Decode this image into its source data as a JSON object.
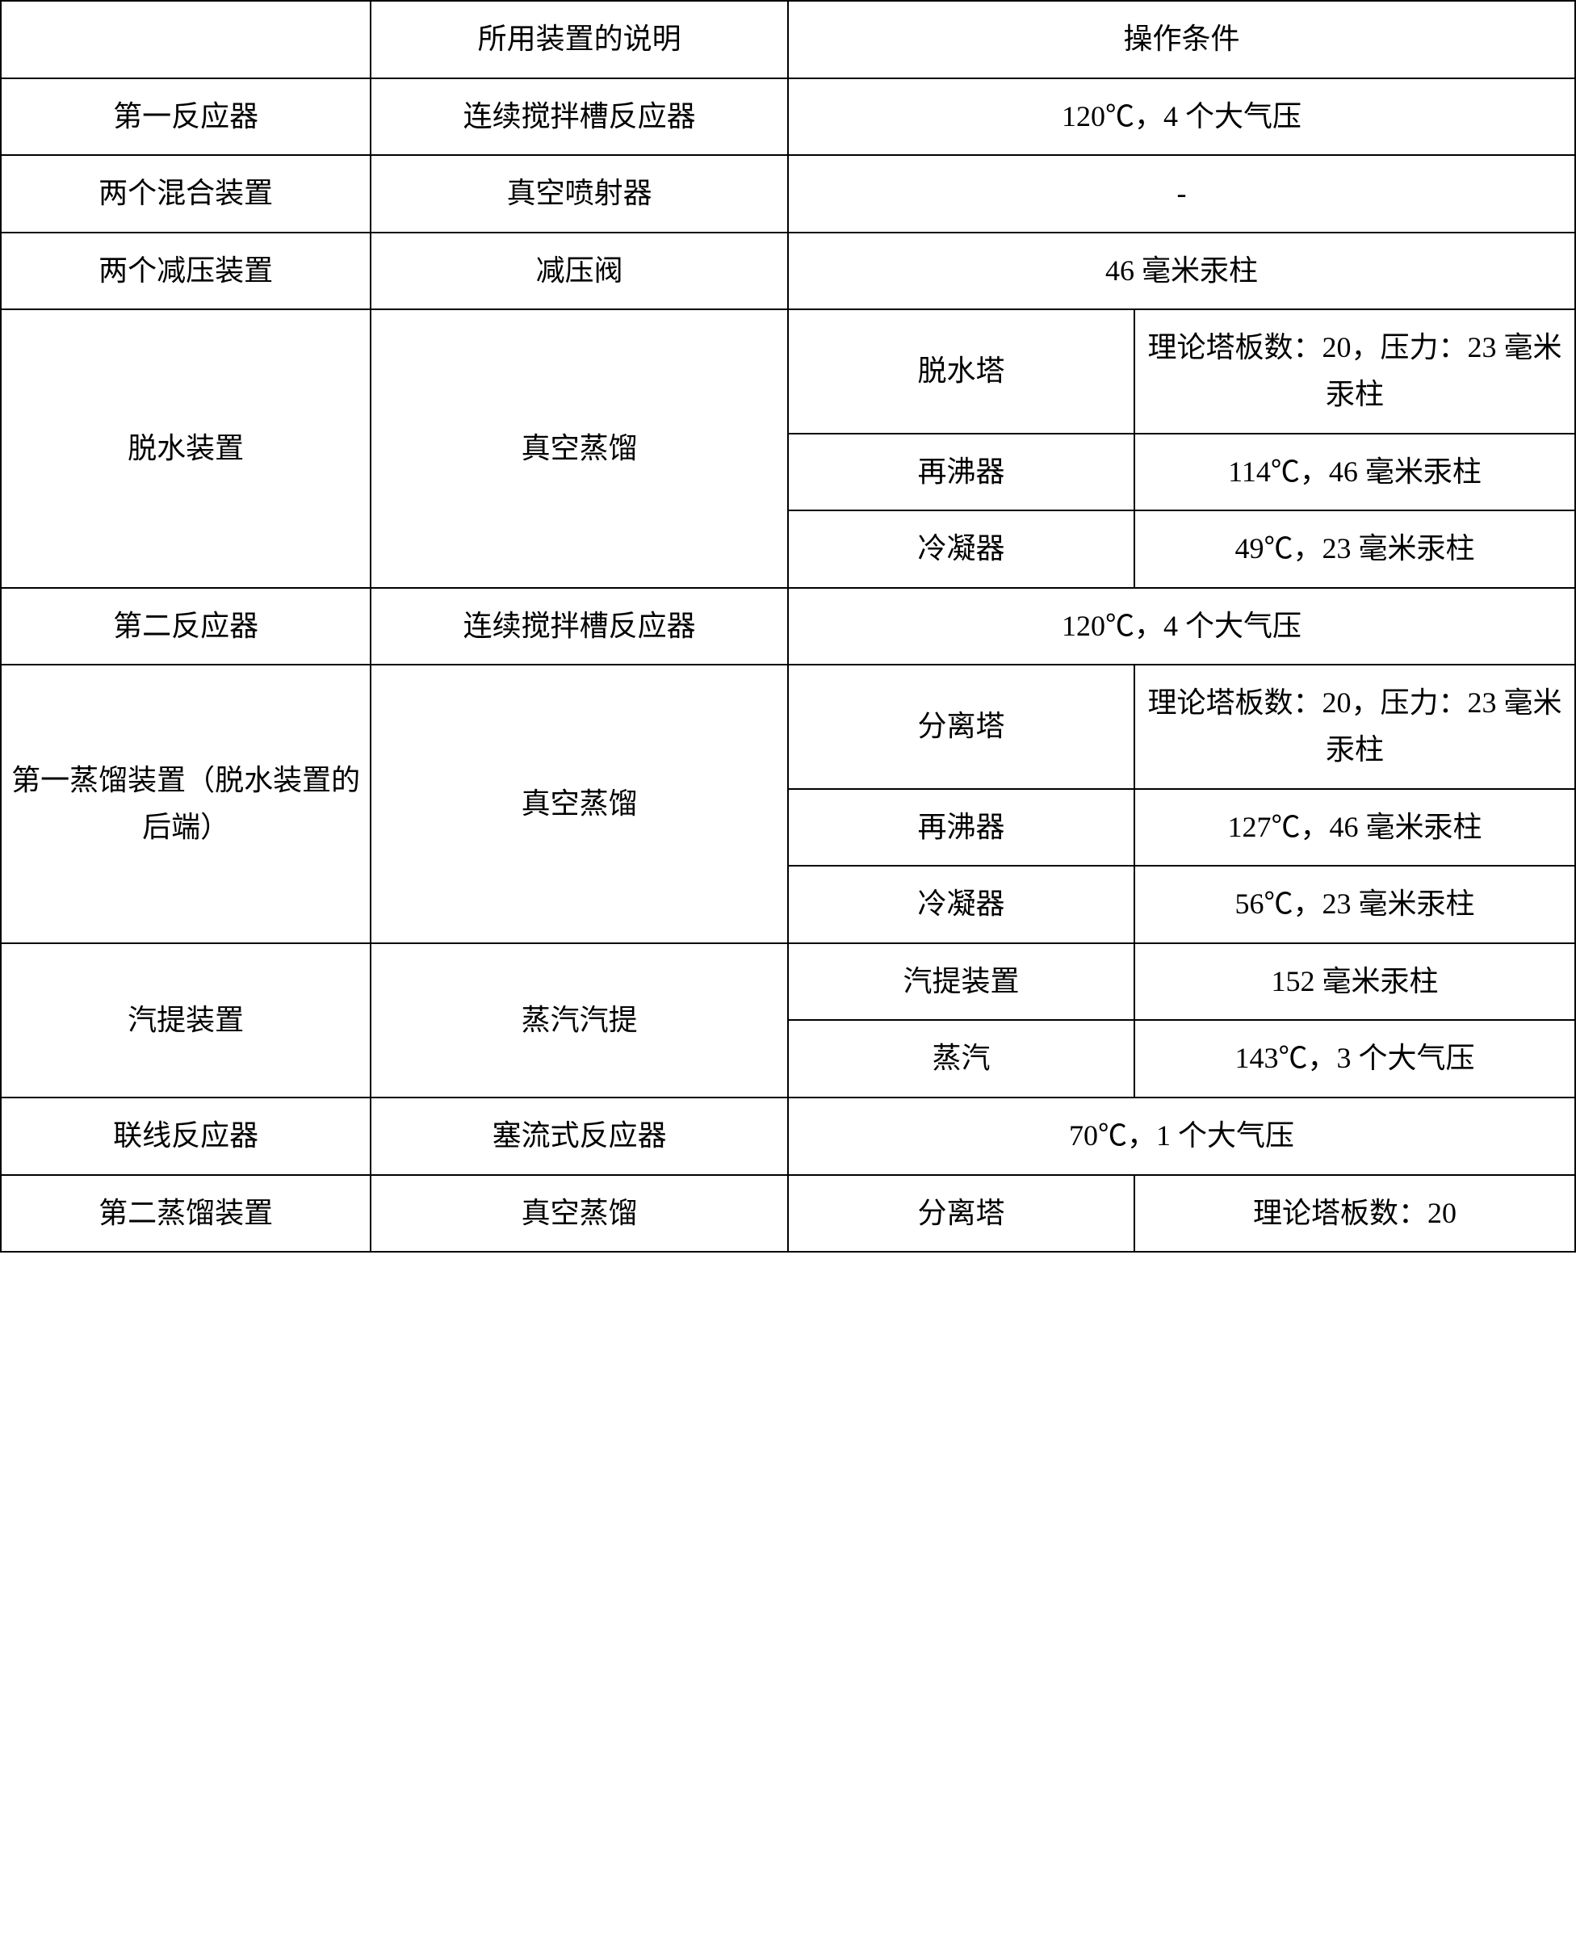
{
  "table": {
    "header": {
      "col1": "",
      "col2": "所用装置的说明",
      "col3_4": "操作条件"
    },
    "rows": {
      "r1": {
        "c1": "第一反应器",
        "c2": "连续搅拌槽反应器",
        "c3_4": "120℃，4 个大气压"
      },
      "r2": {
        "c1": "两个混合装置",
        "c2": "真空喷射器",
        "c3_4": "-"
      },
      "r3": {
        "c1": "两个减压装置",
        "c2": "减压阀",
        "c3_4": "46 毫米汞柱"
      },
      "r4": {
        "c1": "脱水装置",
        "c2": "真空蒸馏",
        "sub1": {
          "c3": "脱水塔",
          "c4": "理论塔板数：20，压力：23 毫米汞柱"
        },
        "sub2": {
          "c3": "再沸器",
          "c4": "114℃，46 毫米汞柱"
        },
        "sub3": {
          "c3": "冷凝器",
          "c4": "49℃，23 毫米汞柱"
        }
      },
      "r5": {
        "c1": "第二反应器",
        "c2": "连续搅拌槽反应器",
        "c3_4": "120℃，4 个大气压"
      },
      "r6": {
        "c1": "第一蒸馏装置（脱水装置的后端）",
        "c2": "真空蒸馏",
        "sub1": {
          "c3": "分离塔",
          "c4": "理论塔板数：20，压力：23 毫米汞柱"
        },
        "sub2": {
          "c3": "再沸器",
          "c4": "127℃，46 毫米汞柱"
        },
        "sub3": {
          "c3": "冷凝器",
          "c4": "56℃，23 毫米汞柱"
        }
      },
      "r7": {
        "c1": "汽提装置",
        "c2": "蒸汽汽提",
        "sub1": {
          "c3": "汽提装置",
          "c4": "152 毫米汞柱"
        },
        "sub2": {
          "c3": "蒸汽",
          "c4": "143℃，3 个大气压"
        }
      },
      "r8": {
        "c1": "联线反应器",
        "c2": "塞流式反应器",
        "c3_4": "70℃，1 个大气压"
      },
      "r9": {
        "c1": "第二蒸馏装置",
        "c2": "真空蒸馏",
        "c3": "分离塔",
        "c4": "理论塔板数：20"
      }
    }
  },
  "styling": {
    "border_color": "#000000",
    "border_width": 2,
    "background_color": "#ffffff",
    "font_family": "SimSun",
    "font_size": 36,
    "text_color": "#000000",
    "cell_padding_vertical": 18,
    "cell_padding_horizontal": 8,
    "text_align": "center",
    "line_height": 1.6,
    "column_widths": [
      "23.5%",
      "26.5%",
      "22%",
      "28%"
    ]
  }
}
